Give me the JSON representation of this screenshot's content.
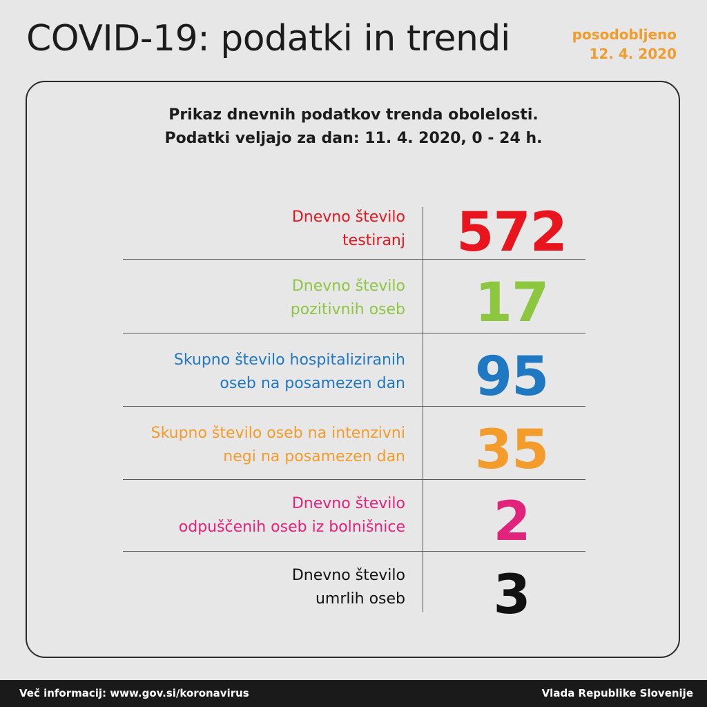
{
  "header": {
    "title": "COVID-19: podatki in trendi",
    "updated_label": "posodobljeno",
    "updated_date": "12. 4. 2020",
    "accent_color": "#f39c2b"
  },
  "card": {
    "subtitle_line1": "Prikaz dnevnih podatkov trenda obolelosti.",
    "subtitle_line2": "Podatki veljajo za dan: 11. 4. 2020, 0 - 24 h.",
    "rows": [
      {
        "label_line1": "Dnevno število",
        "label_line2": "testiranj",
        "value": "572",
        "color": "#e8141e"
      },
      {
        "label_line1": "Dnevno število",
        "label_line2": "pozitivnih oseb",
        "value": "17",
        "color": "#8dc63f"
      },
      {
        "label_line1": "Skupno število hospitaliziranih",
        "label_line2": "oseb na posamezen dan",
        "value": "95",
        "color": "#1f78c1"
      },
      {
        "label_line1": "Skupno število oseb na intenzivni",
        "label_line2": "negi na posamezen dan",
        "value": "35",
        "color": "#f39c2b"
      },
      {
        "label_line1": "Dnevno število",
        "label_line2": "odpuščenih oseb iz bolnišnice",
        "value": "2",
        "color": "#e2237b"
      },
      {
        "label_line1": "Dnevno število",
        "label_line2": "umrlih oseb",
        "value": "3",
        "color": "#111111"
      }
    ]
  },
  "footer": {
    "more_info": "Več informacij: www.gov.si/koronavirus",
    "publisher": "Vlada Republike Slovenije"
  }
}
